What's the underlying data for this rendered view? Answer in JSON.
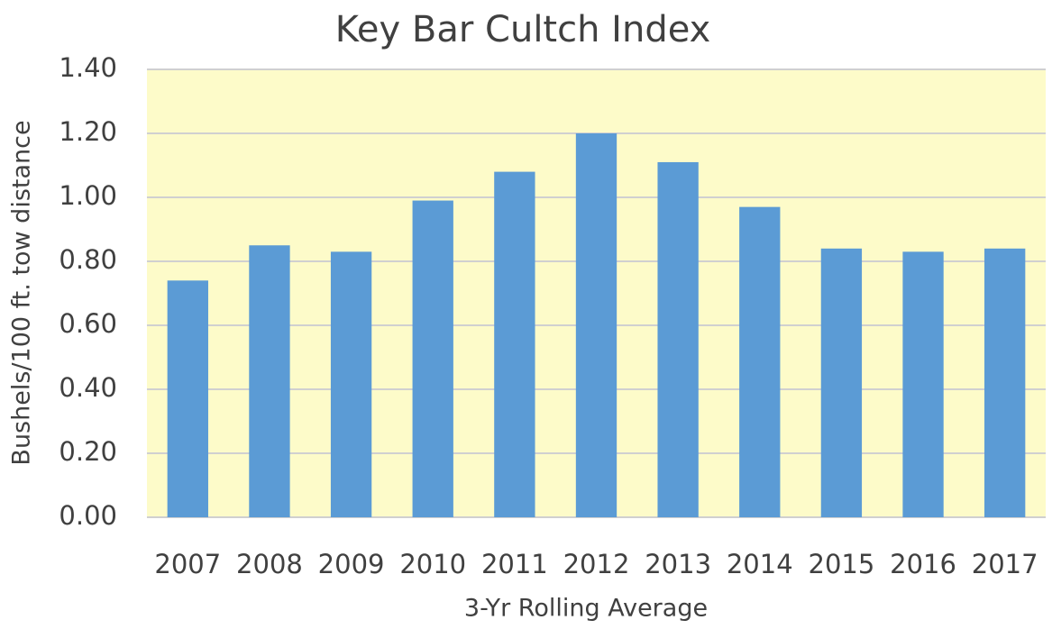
{
  "chart_data": {
    "type": "bar",
    "title": "Key Bar Cultch Index",
    "x_label": "3-Yr Rolling Average",
    "y_label": "Bushels/100 ft. tow distance",
    "categories": [
      "2007",
      "2008",
      "2009",
      "2010",
      "2011",
      "2012",
      "2013",
      "2014",
      "2015",
      "2016",
      "2017"
    ],
    "values": [
      0.74,
      0.85,
      0.83,
      0.99,
      1.08,
      1.2,
      1.11,
      0.97,
      0.84,
      0.83,
      0.84
    ],
    "color": "#5b9bd5",
    "ylim": [
      0,
      1.4
    ],
    "yticks": [
      {
        "value": 0,
        "label": "0.00"
      },
      {
        "value": 0.2,
        "label": "0.20"
      },
      {
        "value": 0.4,
        "label": "0.40"
      },
      {
        "value": 0.6,
        "label": "0.60"
      },
      {
        "value": 0.8,
        "label": "0.80"
      },
      {
        "value": 1.0,
        "label": "1.00"
      },
      {
        "value": 1.2,
        "label": "1.20"
      },
      {
        "value": 1.4,
        "label": "1.40"
      }
    ],
    "grid": true
  }
}
